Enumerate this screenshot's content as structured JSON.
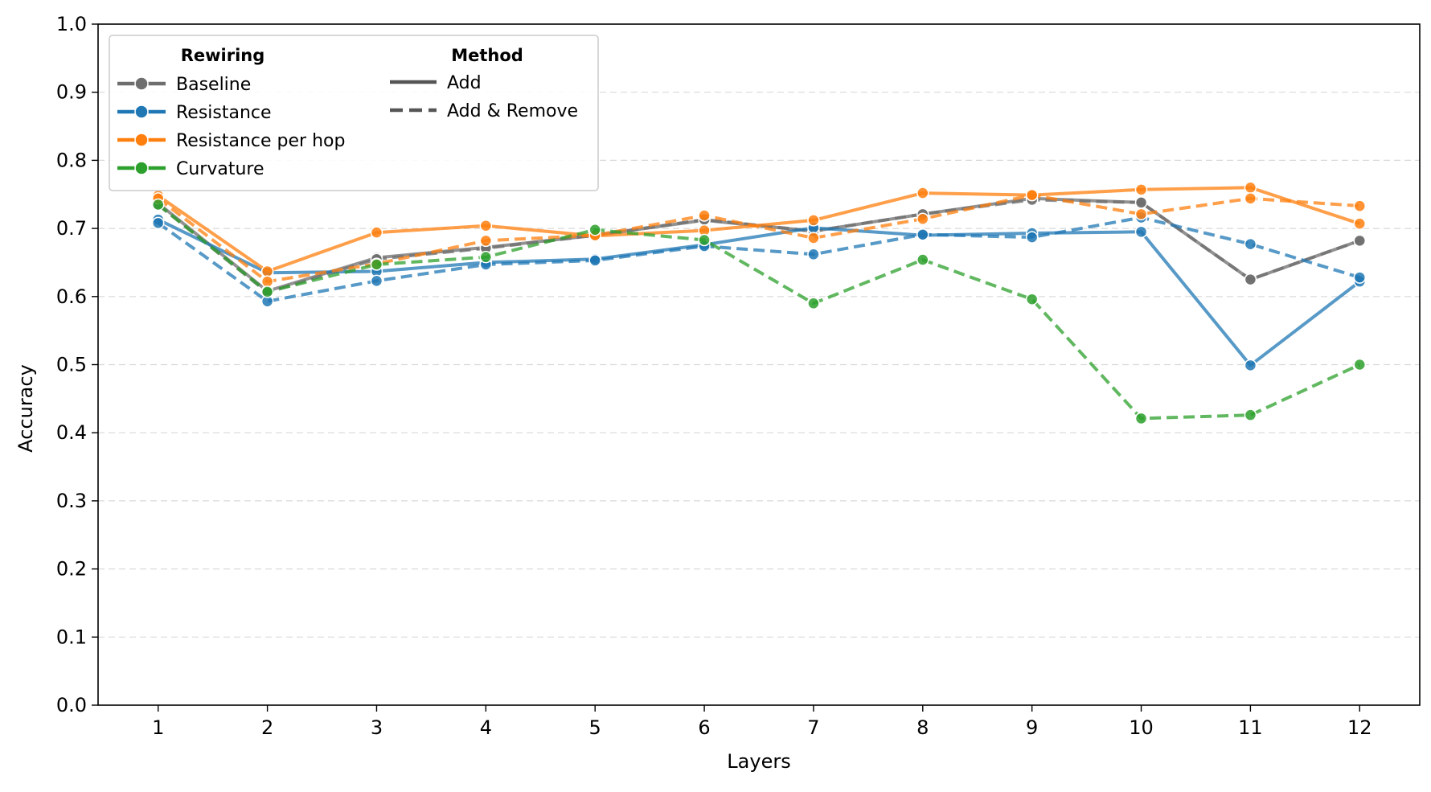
{
  "chart_data": {
    "type": "line",
    "title": "",
    "xlabel": "Layers",
    "ylabel": "Accuracy",
    "xlim": [
      0.45,
      12.55
    ],
    "ylim": [
      0,
      1
    ],
    "x": [
      1,
      2,
      3,
      4,
      5,
      6,
      7,
      8,
      9,
      10,
      11,
      12
    ],
    "x_ticks": [
      "1",
      "2",
      "3",
      "4",
      "5",
      "6",
      "7",
      "8",
      "9",
      "10",
      "11",
      "12"
    ],
    "y_ticks": [
      "0.0",
      "0.1",
      "0.2",
      "0.3",
      "0.4",
      "0.5",
      "0.6",
      "0.7",
      "0.8",
      "0.9",
      "1.0"
    ],
    "y_tick_values": [
      0,
      0.1,
      0.2,
      0.3,
      0.4,
      0.5,
      0.6,
      0.7,
      0.8,
      0.9,
      1.0
    ],
    "grid": "horizontal dashed",
    "legend": {
      "placement": "upper-left",
      "rewiring_title": "Rewiring",
      "method_title": "Method",
      "rewiring": [
        {
          "label": "Baseline",
          "color": "#6e6e6e"
        },
        {
          "label": "Resistance",
          "color": "#1f77b4"
        },
        {
          "label": "Resistance per hop",
          "color": "#ff7f0e"
        },
        {
          "label": "Curvature",
          "color": "#2ca02c"
        }
      ],
      "method": [
        {
          "label": "Add",
          "dash": "solid"
        },
        {
          "label": "Add & Remove",
          "dash": "dashed"
        }
      ]
    },
    "series": [
      {
        "rewiring": "Baseline",
        "method": "Add",
        "color": "#6e6e6e",
        "dashed": false,
        "values": [
          0.737,
          0.608,
          0.657,
          0.672,
          0.69,
          0.712,
          0.696,
          0.721,
          0.744,
          0.738,
          0.625,
          0.682
        ]
      },
      {
        "rewiring": "Baseline",
        "method": "Add & Remove",
        "color": "#6e6e6e",
        "dashed": true,
        "values": [
          0.735,
          0.606,
          0.655,
          0.671,
          0.69,
          0.713,
          0.696,
          0.721,
          0.742,
          0.738,
          0.625,
          0.682
        ]
      },
      {
        "rewiring": "Resistance",
        "method": "Add",
        "color": "#1f77b4",
        "dashed": false,
        "values": [
          0.713,
          0.635,
          0.637,
          0.65,
          0.655,
          0.676,
          0.701,
          0.69,
          0.693,
          0.695,
          0.499,
          0.622
        ]
      },
      {
        "rewiring": "Resistance",
        "method": "Add & Remove",
        "color": "#1f77b4",
        "dashed": true,
        "values": [
          0.708,
          0.593,
          0.623,
          0.647,
          0.653,
          0.674,
          0.662,
          0.691,
          0.687,
          0.716,
          0.677,
          0.628
        ]
      },
      {
        "rewiring": "Resistance per hop",
        "method": "Add",
        "color": "#ff7f0e",
        "dashed": false,
        "values": [
          0.748,
          0.637,
          0.694,
          0.704,
          0.689,
          0.697,
          0.712,
          0.752,
          0.749,
          0.757,
          0.76,
          0.707
        ]
      },
      {
        "rewiring": "Resistance per hop",
        "method": "Add & Remove",
        "color": "#ff7f0e",
        "dashed": true,
        "values": [
          0.744,
          0.622,
          0.648,
          0.682,
          0.69,
          0.719,
          0.686,
          0.714,
          0.749,
          0.721,
          0.744,
          0.733
        ]
      },
      {
        "rewiring": "Curvature",
        "method": "Add & Remove",
        "color": "#2ca02c",
        "dashed": true,
        "values": [
          0.735,
          0.607,
          0.647,
          0.658,
          0.698,
          0.683,
          0.59,
          0.654,
          0.596,
          0.421,
          0.426,
          0.5
        ]
      }
    ]
  }
}
